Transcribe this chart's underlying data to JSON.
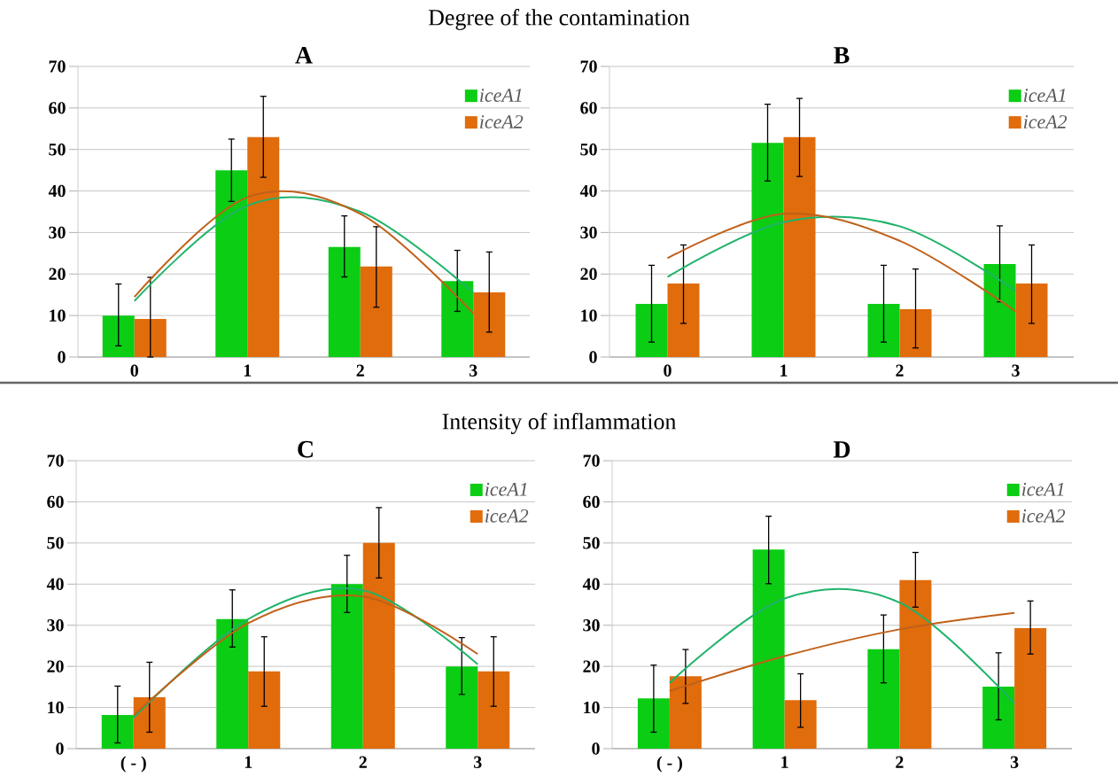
{
  "chart_data": [
    {
      "type": "bar",
      "title": "A",
      "annotations": [
        "Degree of the contamination"
      ],
      "categories": [
        "0",
        "1",
        "2",
        "3"
      ],
      "ylim": [
        0,
        70
      ],
      "yticks": [
        0,
        10,
        20,
        30,
        40,
        50,
        60,
        70
      ],
      "grid": "y",
      "legend": "top right",
      "series": [
        {
          "name": "iceA1",
          "color": "#0acd14",
          "values": [
            10,
            45,
            26.5,
            18.3
          ],
          "errors": [
            [
              2.7,
              17.6
            ],
            [
              37.5,
              52.5
            ],
            [
              19.3,
              34
            ],
            [
              11,
              25.7
            ]
          ]
        },
        {
          "name": "iceA2",
          "color": "#e06c0c",
          "values": [
            9.2,
            53,
            21.8,
            15.6
          ],
          "errors": [
            [
              0,
              19.2
            ],
            [
              43.3,
              62.8
            ],
            [
              12,
              31.4
            ],
            [
              6,
              25.3
            ]
          ]
        },
        {
          "type": "line",
          "color": "#1fb36a",
          "values": [
            13.5,
            36.5,
            35,
            15.5
          ]
        },
        {
          "type": "line",
          "color": "#c0601a",
          "values": [
            14.5,
            38.5,
            34.5,
            10.5
          ]
        }
      ]
    },
    {
      "type": "bar",
      "title": "B",
      "categories": [
        "0",
        "1",
        "2",
        "3"
      ],
      "ylim": [
        0,
        70
      ],
      "yticks": [
        0,
        10,
        20,
        30,
        40,
        50,
        60,
        70
      ],
      "grid": "y",
      "legend": "top right",
      "series": [
        {
          "name": "iceA1",
          "color": "#0acd14",
          "values": [
            12.8,
            51.6,
            12.8,
            22.4
          ],
          "errors": [
            [
              3.6,
              22.1
            ],
            [
              42.4,
              60.9
            ],
            [
              3.6,
              22.1
            ],
            [
              13.3,
              31.6
            ]
          ]
        },
        {
          "name": "iceA2",
          "color": "#e06c0c",
          "values": [
            17.7,
            53,
            11.5,
            17.7
          ],
          "errors": [
            [
              8.1,
              27
            ],
            [
              43.5,
              62.3
            ],
            [
              2.2,
              21.2
            ],
            [
              8.1,
              27
            ]
          ]
        },
        {
          "type": "line",
          "color": "#1fb36a",
          "values": [
            19.3,
            32.5,
            31.5,
            16
          ]
        },
        {
          "type": "line",
          "color": "#c0601a",
          "values": [
            23.8,
            34.5,
            28,
            11
          ]
        }
      ]
    },
    {
      "type": "bar",
      "title": "C",
      "annotations": [
        "Intensity of inflammation"
      ],
      "categories": [
        "( - )",
        "1",
        "2",
        "3"
      ],
      "ylim": [
        0,
        70
      ],
      "yticks": [
        0,
        10,
        20,
        30,
        40,
        50,
        60,
        70
      ],
      "grid": "y",
      "legend": "top right",
      "series": [
        {
          "name": "iceA1",
          "color": "#0acd14",
          "values": [
            8.2,
            31.5,
            40,
            20
          ],
          "errors": [
            [
              1.4,
              15.2
            ],
            [
              24.7,
              38.6
            ],
            [
              33.1,
              47
            ],
            [
              13.2,
              27
            ]
          ]
        },
        {
          "name": "iceA2",
          "color": "#e06c0c",
          "values": [
            12.5,
            18.8,
            50,
            18.8
          ],
          "errors": [
            [
              4,
              21
            ],
            [
              10.3,
              27.2
            ],
            [
              41.5,
              58.6
            ],
            [
              10.3,
              27.2
            ]
          ]
        },
        {
          "type": "line",
          "color": "#1fb36a",
          "values": [
            7.5,
            31.5,
            38.5,
            20.5
          ]
        },
        {
          "type": "line",
          "color": "#c0601a",
          "values": [
            8,
            30.5,
            37,
            23
          ]
        }
      ]
    },
    {
      "type": "bar",
      "title": "D",
      "categories": [
        "( - )",
        "1",
        "2",
        "3"
      ],
      "ylim": [
        0,
        70
      ],
      "yticks": [
        0,
        10,
        20,
        30,
        40,
        50,
        60,
        70
      ],
      "grid": "y",
      "legend": "top right",
      "series": [
        {
          "name": "iceA1",
          "color": "#0acd14",
          "values": [
            12.2,
            48.4,
            24.2,
            15.1
          ],
          "errors": [
            [
              4,
              20.3
            ],
            [
              40.1,
              56.5
            ],
            [
              16,
              32.5
            ],
            [
              7,
              23.3
            ]
          ]
        },
        {
          "name": "iceA2",
          "color": "#e06c0c",
          "values": [
            17.6,
            11.8,
            41,
            29.3
          ],
          "errors": [
            [
              11,
              24.1
            ],
            [
              5.2,
              18.2
            ],
            [
              34.4,
              47.7
            ],
            [
              23,
              35.9
            ]
          ]
        },
        {
          "type": "line",
          "color": "#1fb36a",
          "values": [
            16,
            36.5,
            35.5,
            11
          ]
        },
        {
          "type": "line",
          "color": "#c0601a",
          "values": [
            14,
            22.5,
            29,
            33
          ]
        }
      ]
    }
  ]
}
